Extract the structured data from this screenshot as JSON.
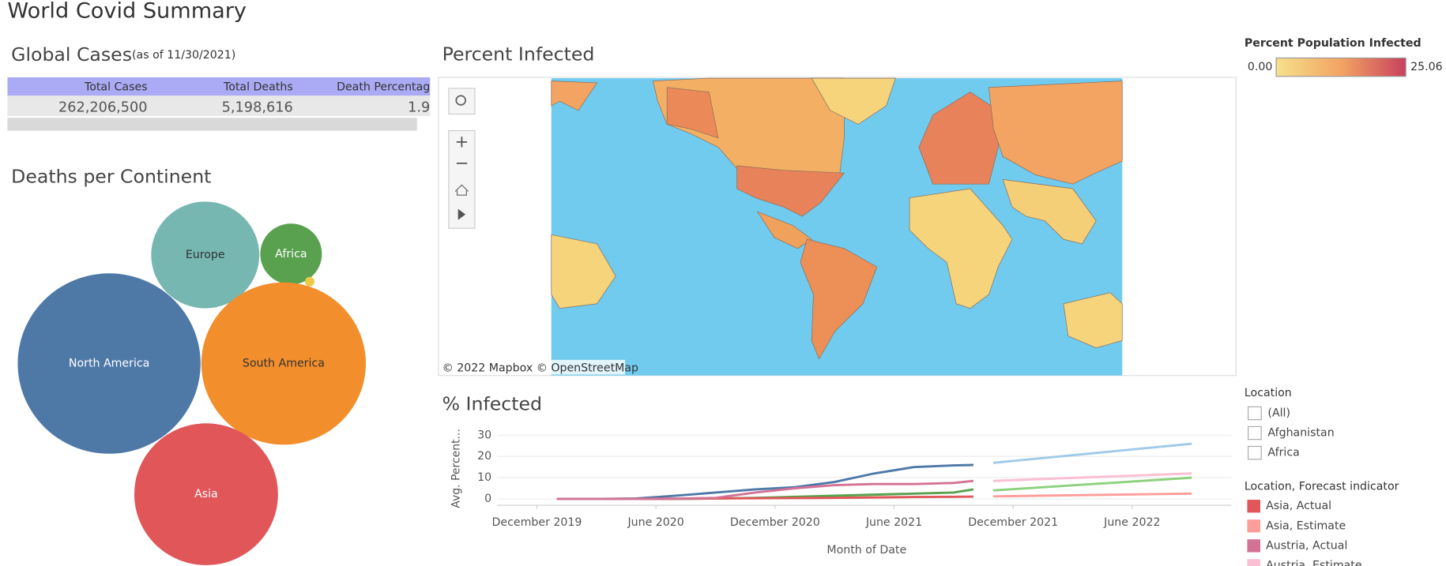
{
  "title": "World Covid Summary",
  "kpi": {
    "title": "Global Cases",
    "subtitle": "(as of 11/30/2021)",
    "table": {
      "columns": [
        "Total Cases",
        "Total Deaths",
        "Death Percentag"
      ],
      "rows": [
        [
          "262,206,500",
          "5,198,616",
          "1.9"
        ]
      ]
    }
  },
  "chart_data": [
    {
      "type": "bubble",
      "title": "Deaths per Continent",
      "categories": [
        "Europe",
        "Africa",
        null,
        "North America",
        "South America",
        "Asia"
      ],
      "values": [
        385000,
        125000,
        3000,
        1100000,
        890000,
        680000
      ],
      "colors": [
        "#76b7b2",
        "#59a14f",
        "#edc948",
        "#4e79a7",
        "#f28e2b",
        "#e15759"
      ]
    },
    {
      "type": "map",
      "title": "Percent Infected",
      "attribution": "© 2022 Mapbox  © OpenStreetMap",
      "legend_title": "Percent Population Infected",
      "color_range": [
        {
          "value": 0,
          "label": "0.00"
        },
        {
          "value": 25.06,
          "label": "25.06"
        }
      ],
      "color_scale": [
        "#f6e08c",
        "#f3a462",
        "#c8405e"
      ]
    },
    {
      "type": "line",
      "title": "% Infected",
      "y_label": "Avg. Percent...",
      "x_label": "Month of Date",
      "xlim": [
        "2019-10",
        "2022-11"
      ],
      "xticks": [
        {
          "value": "2019-12",
          "label": "December 2019"
        },
        {
          "value": "2020-06",
          "label": "June 2020"
        },
        {
          "value": "2020-12",
          "label": "December 2020"
        },
        {
          "value": "2021-06",
          "label": "June 2021"
        },
        {
          "value": "2021-12",
          "label": "December 2021"
        },
        {
          "value": "2022-06",
          "label": "June 2022"
        }
      ],
      "ylim": [
        -3,
        33
      ],
      "yticks": [
        0,
        10,
        20,
        30
      ],
      "grid": true,
      "legend_title": "Location, Forecast indicator",
      "series": [
        {
          "color": "#4e79a7",
          "x": [
            "2020-01",
            "2020-03",
            "2020-05",
            "2020-07",
            "2020-09",
            "2020-11",
            "2021-01",
            "2021-03",
            "2021-05",
            "2021-07",
            "2021-09",
            "2021-10"
          ],
          "values": [
            0,
            0,
            0.2,
            1.5,
            3,
            4.5,
            5.5,
            8,
            12,
            15,
            15.8,
            16
          ]
        },
        {
          "color": "#a0cbe8",
          "x": [
            "2021-11",
            "2022-09"
          ],
          "values": [
            17,
            26
          ]
        },
        {
          "color": "#59a14f",
          "x": [
            "2020-01",
            "2020-03",
            "2020-05",
            "2020-07",
            "2020-09",
            "2020-11",
            "2021-01",
            "2021-03",
            "2021-05",
            "2021-07",
            "2021-09",
            "2021-10"
          ],
          "values": [
            0,
            0,
            0,
            0,
            0.2,
            0.5,
            1,
            1.5,
            2,
            2.5,
            3,
            4.5
          ]
        },
        {
          "color": "#8cd17d",
          "x": [
            "2021-11",
            "2022-09"
          ],
          "values": [
            4,
            10
          ]
        },
        {
          "name": "Asia, Actual",
          "color": "#e15759",
          "x": [
            "2020-01",
            "2020-03",
            "2020-05",
            "2020-07",
            "2020-09",
            "2020-11",
            "2021-01",
            "2021-03",
            "2021-05",
            "2021-07",
            "2021-09",
            "2021-10"
          ],
          "values": [
            0,
            0,
            0,
            0.1,
            0.2,
            0.3,
            0.4,
            0.5,
            0.7,
            0.9,
            1,
            1.1
          ]
        },
        {
          "name": "Asia, Estimate",
          "color": "#ff9d9a",
          "x": [
            "2021-11",
            "2022-09"
          ],
          "values": [
            1.2,
            2.5
          ]
        },
        {
          "name": "Austria, Actual",
          "color": "#d37295",
          "x": [
            "2020-01",
            "2020-03",
            "2020-05",
            "2020-07",
            "2020-09",
            "2020-11",
            "2021-01",
            "2021-03",
            "2021-05",
            "2021-07",
            "2021-09",
            "2021-10"
          ],
          "values": [
            0,
            0,
            0,
            0.1,
            0.5,
            3,
            5,
            6.5,
            7,
            7,
            7.5,
            8.5
          ]
        },
        {
          "name": "Austria, Estimate",
          "color": "#fabfd2",
          "x": [
            "2021-11",
            "2022-09"
          ],
          "values": [
            8.5,
            12
          ]
        }
      ]
    }
  ],
  "filters": {
    "title": "Location",
    "options": [
      "(All)",
      "Afghanistan",
      "Africa"
    ]
  }
}
